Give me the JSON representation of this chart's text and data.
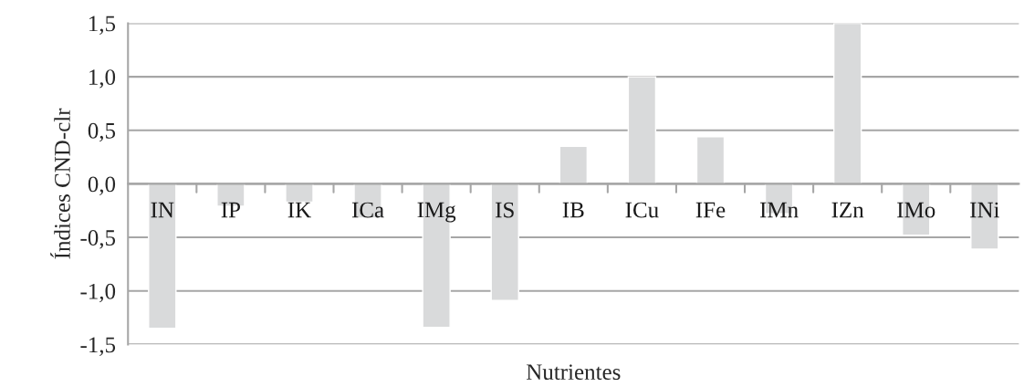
{
  "chart_data": {
    "type": "bar",
    "xlabel": "Nutrientes",
    "ylabel": "Índices CND-clr",
    "categories": [
      "IN",
      "IP",
      "IK",
      "ICa",
      "IMg",
      "IS",
      "IB",
      "ICu",
      "IFe",
      "IMn",
      "IZn",
      "IMo",
      "INi"
    ],
    "values": [
      -1.35,
      -0.21,
      -0.17,
      -0.32,
      -1.34,
      -1.09,
      0.35,
      1.0,
      0.44,
      -0.28,
      1.5,
      -0.48,
      -0.61
    ],
    "color": "#d9dadb",
    "ylim": [
      -1.5,
      1.5
    ],
    "yticks": [
      {
        "value": -1.5,
        "label": "-1,5"
      },
      {
        "value": -1.0,
        "label": "-1,0"
      },
      {
        "value": -0.5,
        "label": "-0,5"
      },
      {
        "value": 0,
        "label": "0,0"
      },
      {
        "value": 0.5,
        "label": "0,5"
      },
      {
        "value": 1.0,
        "label": "1,0"
      },
      {
        "value": 1.5,
        "label": "1,5"
      }
    ],
    "grid": "y",
    "legend": false
  }
}
